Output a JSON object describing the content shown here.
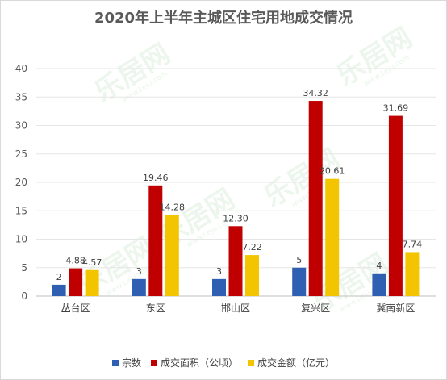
{
  "chart_data": {
    "type": "bar",
    "title": "2020年上半年主城区住宅用地成交情况",
    "categories": [
      "丛台区",
      "东区",
      "邯山区",
      "复兴区",
      "冀南新区"
    ],
    "series": [
      {
        "name": "宗数",
        "color": "#2f5fb3",
        "values": [
          2,
          3,
          3,
          5,
          4
        ],
        "labels": [
          "2",
          "3",
          "3",
          "5",
          "4"
        ]
      },
      {
        "name": "成交面积（公顷）",
        "color": "#c00000",
        "values": [
          4.88,
          19.46,
          12.3,
          34.32,
          31.69
        ],
        "labels": [
          "4.88",
          "19.46",
          "12.30",
          "34.32",
          "31.69"
        ]
      },
      {
        "name": "成交金额（亿元）",
        "color": "#f2c500",
        "values": [
          4.57,
          14.28,
          7.22,
          20.61,
          7.74
        ],
        "labels": [
          "4.57",
          "14.28",
          "7.22",
          "20.61",
          "7.74"
        ]
      }
    ],
    "ylim": [
      0,
      40
    ],
    "yticks": [
      0,
      5,
      10,
      15,
      20,
      25,
      30,
      35,
      40
    ],
    "grid": true,
    "legend_position": "bottom"
  },
  "watermark": {
    "text": "乐居网",
    "url_text": "www.Leju.com"
  }
}
